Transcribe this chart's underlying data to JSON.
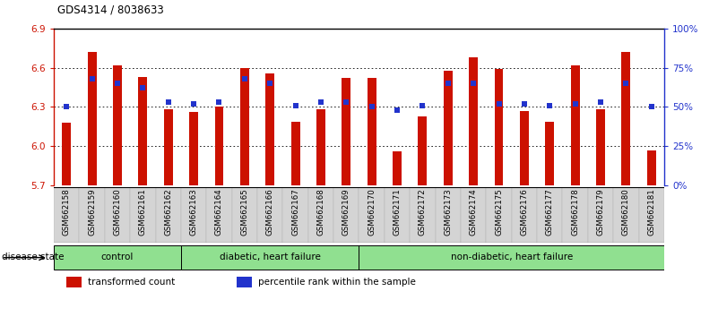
{
  "title": "GDS4314 / 8038633",
  "samples": [
    "GSM662158",
    "GSM662159",
    "GSM662160",
    "GSM662161",
    "GSM662162",
    "GSM662163",
    "GSM662164",
    "GSM662165",
    "GSM662166",
    "GSM662167",
    "GSM662168",
    "GSM662169",
    "GSM662170",
    "GSM662171",
    "GSM662172",
    "GSM662173",
    "GSM662174",
    "GSM662175",
    "GSM662176",
    "GSM662177",
    "GSM662178",
    "GSM662179",
    "GSM662180",
    "GSM662181"
  ],
  "bar_values": [
    6.18,
    6.72,
    6.62,
    6.53,
    6.28,
    6.26,
    6.3,
    6.6,
    6.56,
    6.19,
    6.28,
    6.52,
    6.52,
    5.96,
    6.23,
    6.58,
    6.68,
    6.59,
    6.27,
    6.19,
    6.62,
    6.28,
    6.72,
    5.97
  ],
  "percentile_values": [
    50,
    68,
    65,
    62,
    53,
    52,
    53,
    68,
    65,
    51,
    53,
    53,
    50,
    48,
    51,
    65,
    65,
    52,
    52,
    51,
    52,
    53,
    65,
    50
  ],
  "ymin": 5.7,
  "ymax": 6.9,
  "yticks": [
    5.7,
    6.0,
    6.3,
    6.6,
    6.9
  ],
  "right_yticks": [
    0,
    25,
    50,
    75,
    100
  ],
  "right_yticklabels": [
    "0%",
    "25%",
    "50%",
    "75%",
    "100%"
  ],
  "bar_color": "#cc1100",
  "blue_color": "#2233cc",
  "group_defs": [
    {
      "start": 0,
      "end": 4,
      "label": "control"
    },
    {
      "start": 5,
      "end": 11,
      "label": "diabetic, heart failure"
    },
    {
      "start": 12,
      "end": 23,
      "label": "non-diabetic, heart failure"
    }
  ],
  "group_color": "#90e090",
  "disease_state_label": "disease state",
  "legend_items": [
    {
      "label": "transformed count",
      "color": "#cc1100"
    },
    {
      "label": "percentile rank within the sample",
      "color": "#2233cc"
    }
  ]
}
